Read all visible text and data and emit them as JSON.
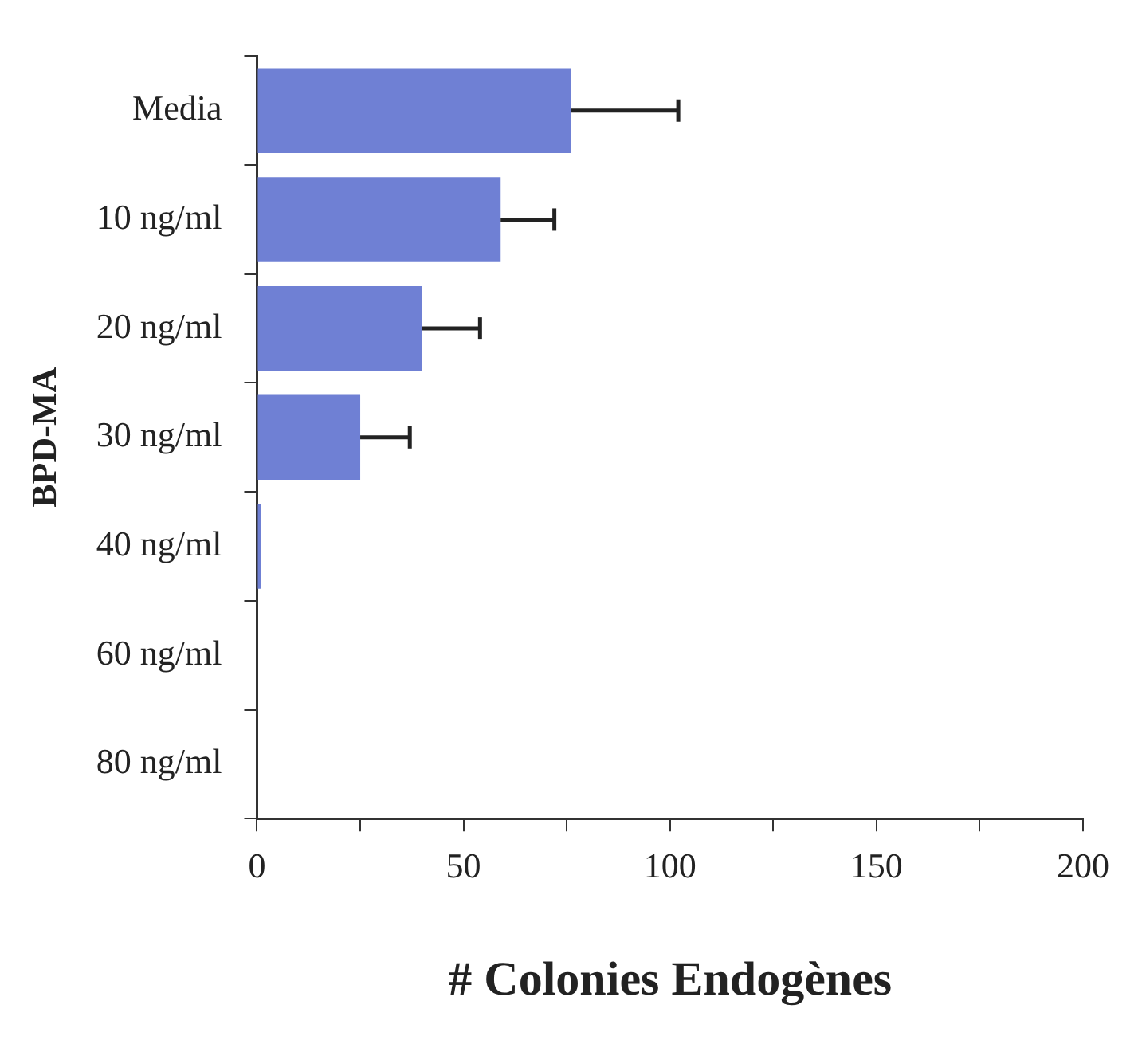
{
  "chart_data": {
    "type": "bar",
    "orientation": "horizontal",
    "xlabel": "# Colonies Endogènes",
    "ylabel": "BPD-MA",
    "categories": [
      "Media",
      "10 ng/ml",
      "20 ng/ml",
      "30 ng/ml",
      "40 ng/ml",
      "60 ng/ml",
      "80 ng/ml"
    ],
    "values": [
      76,
      59,
      40,
      25,
      1,
      0,
      0
    ],
    "errors": [
      [
        76,
        102
      ],
      [
        59,
        72
      ],
      [
        40,
        54
      ],
      [
        25,
        37
      ],
      null,
      null,
      null
    ],
    "color": "#6f80d4",
    "xlim": [
      0,
      200
    ],
    "xticks": [
      0,
      {
        "value": 25,
        "label": null
      },
      50,
      {
        "value": 75,
        "label": null
      },
      100,
      {
        "value": 125,
        "label": null
      },
      150,
      {
        "value": 175,
        "label": null
      },
      200
    ],
    "grid": false,
    "legend": false
  }
}
